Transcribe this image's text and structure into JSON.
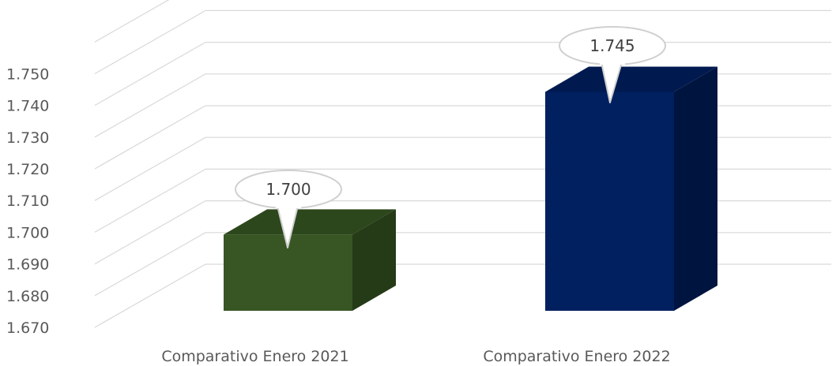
{
  "chart_data": {
    "type": "bar",
    "categories": [
      "Comparativo Enero 2021",
      "Comparativo Enero 2022"
    ],
    "values": [
      1700,
      1745
    ],
    "data_labels": [
      "1.700",
      "1.745"
    ],
    "y_ticks": [
      "1.670",
      "1.680",
      "1.690",
      "1.700",
      "1.710",
      "1.720",
      "1.730",
      "1.740",
      "1.750"
    ],
    "ylim": [
      1670,
      1760
    ],
    "grid": true,
    "legend": "none",
    "colors": {
      "bars": [
        {
          "front": "#375623",
          "side": "#253a17",
          "top": "#2d471c"
        },
        {
          "front": "#002060",
          "side": "#001440",
          "top": "#001a50"
        }
      ],
      "grid": "#d9d9d9",
      "text": "#595959"
    }
  }
}
